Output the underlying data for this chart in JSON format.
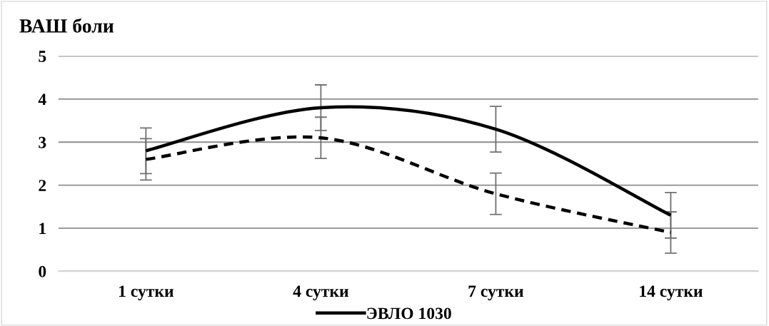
{
  "chart_data": {
    "type": "line",
    "title": "ВАШ боли",
    "categories": [
      "1 сутки",
      "4 сутки",
      "7 сутки",
      "14 сутки"
    ],
    "series": [
      {
        "name": "ЭВЛО 1030",
        "color": "#000000",
        "line_style": "solid",
        "values": [
          2.8,
          3.8,
          3.3,
          1.3
        ],
        "errors": [
          0.53,
          0.53,
          0.53,
          0.53
        ]
      },
      {
        "color": "#000000",
        "line_style": "dashed",
        "values": [
          2.6,
          3.1,
          1.8,
          0.9
        ],
        "errors": [
          0.48,
          0.48,
          0.48,
          0.48
        ]
      }
    ],
    "ylim": [
      0,
      5
    ],
    "yticks": [
      0,
      1,
      2,
      3,
      4,
      5
    ],
    "grid": "y",
    "legend": "bottom",
    "marker": "none"
  }
}
